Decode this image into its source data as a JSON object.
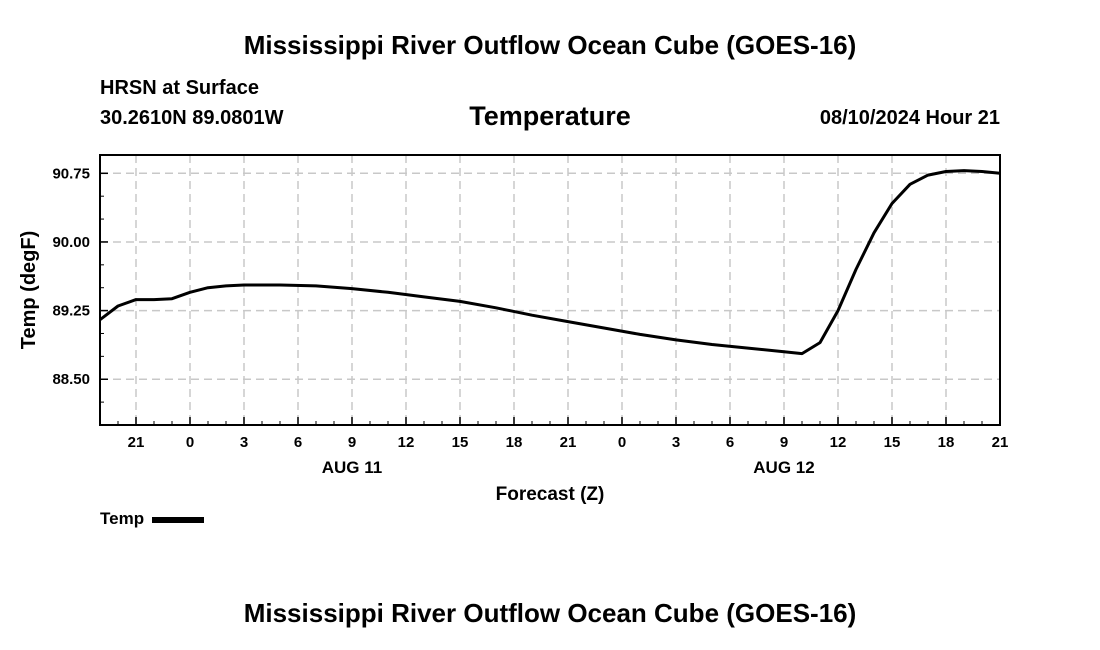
{
  "page": {
    "title_top": "Mississippi River Outflow Ocean Cube (GOES-16)",
    "title_bottom": "Mississippi River Outflow Ocean Cube (GOES-16)",
    "location_label": "HRSN at Surface",
    "coordinates": "30.2610N  89.0801W",
    "chart_title": "Temperature",
    "datetime": "08/10/2024 Hour 21"
  },
  "legend": {
    "label": "Temp",
    "color": "#000000"
  },
  "chart_data": {
    "type": "line",
    "title": "Temperature",
    "xlabel": "Forecast (Z)",
    "ylabel": "Temp (degF)",
    "ylim": [
      88.0,
      90.95
    ],
    "xlim": [
      -2,
      48
    ],
    "grid": true,
    "yticks": [
      88.5,
      89.25,
      90.0,
      90.75
    ],
    "ytick_labels": [
      "88.50",
      "89.25",
      "90.00",
      "90.75"
    ],
    "xtick_hours": [
      0,
      3,
      6,
      9,
      12,
      15,
      18,
      21,
      24,
      27,
      30,
      33,
      36,
      39,
      42,
      45,
      48
    ],
    "xtick_labels": [
      "21",
      "0",
      "3",
      "6",
      "9",
      "12",
      "15",
      "18",
      "21",
      "0",
      "3",
      "6",
      "9",
      "12",
      "15",
      "18",
      "21"
    ],
    "date_labels": [
      {
        "hour": 12,
        "label": "AUG 11"
      },
      {
        "hour": 36,
        "label": "AUG 12"
      }
    ],
    "series": [
      {
        "name": "Temp",
        "x": [
          -2,
          -1,
          0,
          1,
          2,
          3,
          4,
          5,
          6,
          8,
          10,
          12,
          14,
          16,
          18,
          20,
          22,
          24,
          26,
          28,
          30,
          32,
          34,
          36,
          37,
          38,
          39,
          40,
          41,
          42,
          43,
          44,
          45,
          46,
          47,
          48
        ],
        "values": [
          89.15,
          89.3,
          89.37,
          89.37,
          89.38,
          89.45,
          89.5,
          89.52,
          89.53,
          89.53,
          89.52,
          89.49,
          89.45,
          89.4,
          89.35,
          89.28,
          89.2,
          89.13,
          89.06,
          88.99,
          88.93,
          88.88,
          88.84,
          88.8,
          88.78,
          88.9,
          89.25,
          89.7,
          90.1,
          90.42,
          90.63,
          90.73,
          90.77,
          90.78,
          90.77,
          90.75
        ]
      }
    ]
  }
}
